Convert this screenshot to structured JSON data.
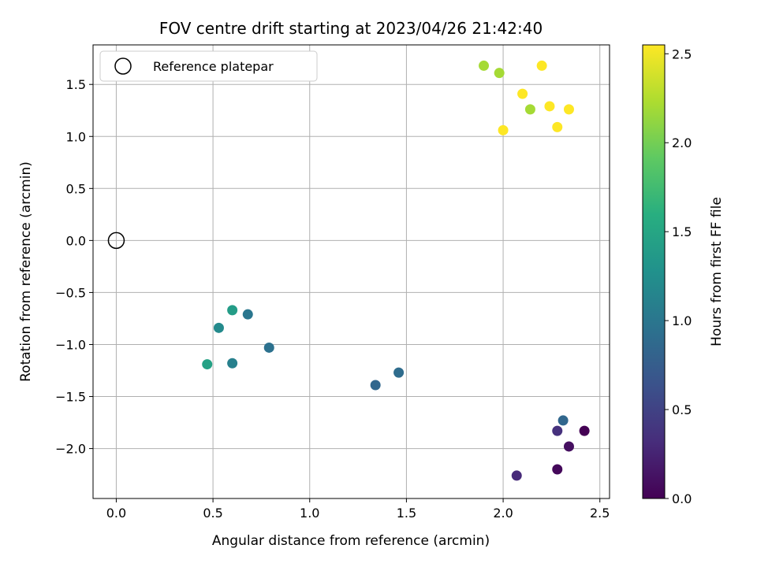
{
  "chart_data": {
    "type": "scatter",
    "title": "FOV centre drift starting at 2023/04/26 21:42:40",
    "xlabel": "Angular distance from reference (arcmin)",
    "ylabel": "Rotation from reference (arcmin)",
    "xlim": [
      -0.12,
      2.55
    ],
    "ylim": [
      -2.48,
      1.88
    ],
    "xticks": [
      0.0,
      0.5,
      1.0,
      1.5,
      2.0,
      2.5
    ],
    "xtick_labels": [
      "0.0",
      "0.5",
      "1.0",
      "1.5",
      "2.0",
      "2.5"
    ],
    "yticks": [
      -2.0,
      -1.5,
      -1.0,
      -0.5,
      0.0,
      0.5,
      1.0,
      1.5
    ],
    "ytick_labels": [
      "−2.0",
      "−1.5",
      "−1.0",
      "−0.5",
      "0.0",
      "0.5",
      "1.0",
      "1.5"
    ],
    "grid": true,
    "legend": {
      "position": "top-left",
      "entries": [
        {
          "label": "Reference platepar",
          "marker": "open-circle",
          "x": 0.0,
          "y": 0.0
        }
      ]
    },
    "colorbar": {
      "label": "Hours from first FF file",
      "colormap": "viridis",
      "range": [
        0.0,
        2.55
      ],
      "ticks": [
        0.0,
        0.5,
        1.0,
        1.5,
        2.0,
        2.5
      ],
      "tick_labels": [
        "0.0",
        "0.5",
        "1.0",
        "1.5",
        "2.0",
        "2.5"
      ]
    },
    "points": [
      {
        "x": 2.42,
        "y": -1.83,
        "c": 0.0
      },
      {
        "x": 2.28,
        "y": -2.2,
        "c": 0.05
      },
      {
        "x": 2.34,
        "y": -1.98,
        "c": 0.1
      },
      {
        "x": 2.07,
        "y": -2.26,
        "c": 0.3
      },
      {
        "x": 2.28,
        "y": -1.83,
        "c": 0.35
      },
      {
        "x": 2.31,
        "y": -1.73,
        "c": 0.85
      },
      {
        "x": 1.34,
        "y": -1.39,
        "c": 0.85
      },
      {
        "x": 1.46,
        "y": -1.27,
        "c": 0.9
      },
      {
        "x": 0.79,
        "y": -1.03,
        "c": 0.95
      },
      {
        "x": 0.68,
        "y": -0.71,
        "c": 1.0
      },
      {
        "x": 0.6,
        "y": -1.18,
        "c": 1.1
      },
      {
        "x": 0.53,
        "y": -0.84,
        "c": 1.2
      },
      {
        "x": 0.6,
        "y": -0.67,
        "c": 1.4
      },
      {
        "x": 0.47,
        "y": -1.19,
        "c": 1.45
      },
      {
        "x": 1.9,
        "y": 1.68,
        "c": 2.2
      },
      {
        "x": 1.98,
        "y": 1.61,
        "c": 2.2
      },
      {
        "x": 2.14,
        "y": 1.26,
        "c": 2.2
      },
      {
        "x": 2.2,
        "y": 1.68,
        "c": 2.55
      },
      {
        "x": 2.1,
        "y": 1.41,
        "c": 2.55
      },
      {
        "x": 2.24,
        "y": 1.29,
        "c": 2.55
      },
      {
        "x": 2.34,
        "y": 1.26,
        "c": 2.55
      },
      {
        "x": 2.28,
        "y": 1.09,
        "c": 2.55
      },
      {
        "x": 2.0,
        "y": 1.06,
        "c": 2.55
      }
    ]
  }
}
